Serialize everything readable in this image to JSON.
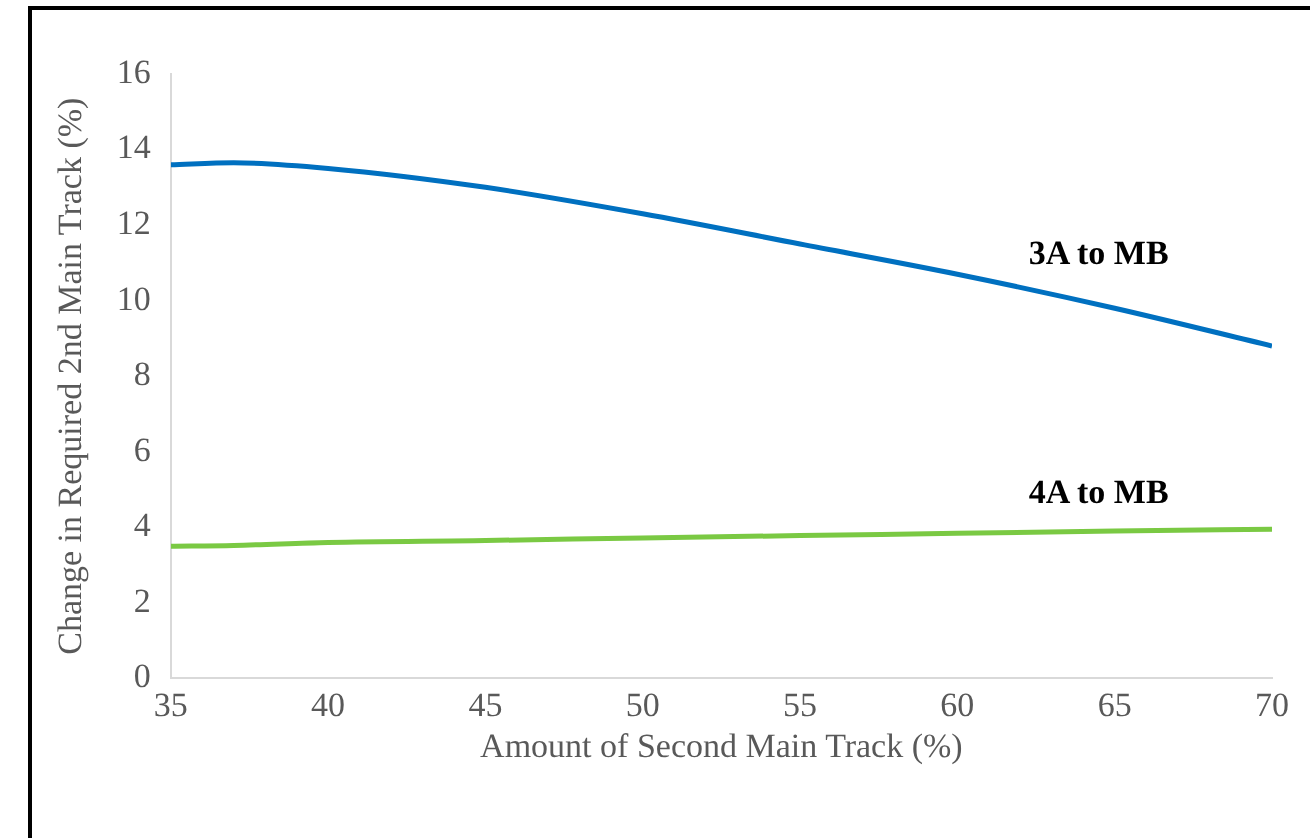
{
  "chart_data": {
    "type": "line",
    "xlabel": "Amount of Second Main Track (%)",
    "ylabel": "Change in Required 2nd Main Track (%)",
    "x": [
      35,
      37,
      40,
      45,
      50,
      55,
      60,
      65,
      70
    ],
    "series": [
      {
        "name": "3A to MB",
        "color": "#0070c0",
        "values": [
          13.6,
          13.65,
          13.5,
          13.0,
          12.3,
          11.5,
          10.7,
          9.8,
          8.8
        ]
      },
      {
        "name": "4A to MB",
        "color": "#7ac943",
        "values": [
          3.5,
          3.52,
          3.6,
          3.65,
          3.72,
          3.78,
          3.84,
          3.9,
          3.95
        ]
      }
    ],
    "xlim": [
      35,
      70
    ],
    "xticks": [
      35,
      40,
      45,
      50,
      55,
      60,
      65,
      70
    ],
    "ylim": [
      0,
      16
    ],
    "yticks": [
      0,
      2,
      4,
      6,
      8,
      10,
      12,
      14,
      16
    ],
    "grid": false,
    "legend": false,
    "marker": "none",
    "line_style": "solid"
  }
}
